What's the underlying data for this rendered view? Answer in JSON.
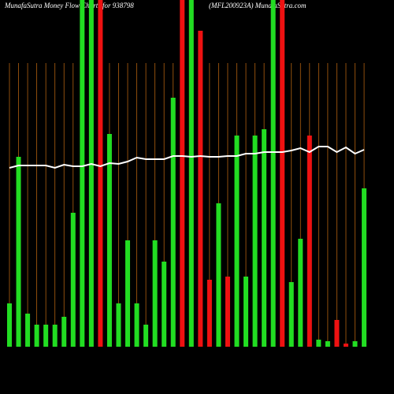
{
  "chart_data": {
    "type": "bar",
    "title": "MunafaSutra  Money Flow  Charts for 938798",
    "subtitle": "(MFL200923A) MunafaSutra.com",
    "categories": [
      null,
      null,
      null,
      null,
      null,
      null,
      null,
      null,
      null,
      null,
      null,
      null,
      null,
      null,
      null,
      null,
      null,
      null,
      null,
      null,
      null,
      null,
      null,
      null,
      null,
      null,
      null,
      null,
      null,
      null,
      null,
      null,
      null,
      null,
      null,
      null,
      null,
      null,
      null,
      null
    ],
    "values": [
      55,
      241,
      42,
      28,
      28,
      28,
      38,
      170,
      460,
      460,
      460,
      270,
      55,
      135,
      55,
      28,
      135,
      108,
      316,
      460,
      460,
      401,
      85,
      182,
      89,
      268,
      89,
      268,
      276,
      460,
      460,
      82,
      137,
      268,
      9,
      7,
      34,
      4,
      7,
      201
    ],
    "colors": [
      "#22dd22",
      "#22dd22",
      "#22dd22",
      "#22dd22",
      "#22dd22",
      "#22dd22",
      "#22dd22",
      "#22dd22",
      "#22dd22",
      "#22dd22",
      "#ee1111",
      "#22dd22",
      "#22dd22",
      "#22dd22",
      "#22dd22",
      "#22dd22",
      "#22dd22",
      "#22dd22",
      "#22dd22",
      "#ee1111",
      "#22dd22",
      "#ee1111",
      "#ee1111",
      "#22dd22",
      "#ee1111",
      "#22dd22",
      "#22dd22",
      "#22dd22",
      "#22dd22",
      "#22dd22",
      "#ee1111",
      "#22dd22",
      "#22dd22",
      "#ee1111",
      "#22dd22",
      "#22dd22",
      "#ee1111",
      "#ee1111",
      "#22dd22",
      "#22dd22"
    ],
    "line_values": [
      227,
      230,
      230,
      230,
      230,
      227,
      231,
      229,
      229,
      232,
      229,
      233,
      232,
      235,
      240,
      238,
      238,
      238,
      242,
      242,
      241,
      242,
      241,
      241,
      242,
      242,
      245,
      245,
      247,
      247,
      247,
      249,
      252,
      247,
      254,
      254,
      247,
      253,
      245,
      250
    ],
    "line_color": "#ffffff",
    "grid_color": "#b06010",
    "ylim": [
      0,
      440
    ]
  }
}
